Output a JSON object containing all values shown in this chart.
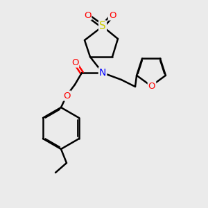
{
  "bg_color": "#ebebeb",
  "atom_colors": {
    "O": "#ff0000",
    "N": "#0000ff",
    "S": "#cccc00",
    "C": "#000000"
  },
  "bond_color": "#000000",
  "bond_width": 1.8,
  "figsize": [
    3.0,
    3.0
  ],
  "dpi": 100
}
